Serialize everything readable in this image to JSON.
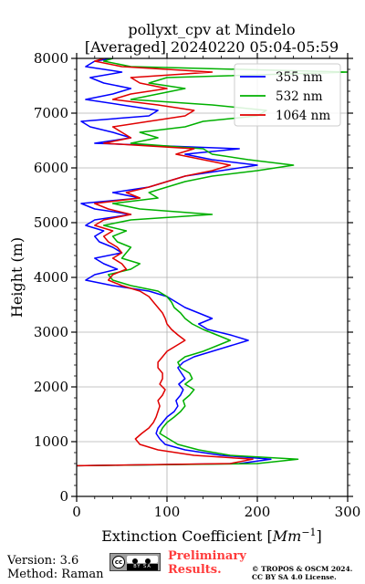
{
  "chart_data": {
    "type": "line",
    "title_line1": "pollyxt_cpv at Mindelo",
    "title_line2": "[Averaged] 20240220 05:04-05:59",
    "xlabel": "Extinction Coefficient [$Mm^{-1}$]",
    "xlabel_main": "Extinction Coefficient [",
    "xlabel_unit": "Mm",
    "xlabel_exp": "−1",
    "xlabel_close": "]",
    "ylabel": "Height (m)",
    "xlim": [
      0,
      300
    ],
    "ylim": [
      0,
      8000
    ],
    "xticks": [
      0,
      100,
      200,
      300
    ],
    "yticks": [
      0,
      1000,
      2000,
      3000,
      4000,
      5000,
      6000,
      7000,
      8000
    ],
    "grid": true,
    "legend_position": "top-right",
    "series": [
      {
        "name": "355 nm",
        "color": "#0000ff",
        "y": [
          560,
          600,
          680,
          750,
          850,
          950,
          1050,
          1150,
          1250,
          1350,
          1450,
          1550,
          1650,
          1750,
          1850,
          1950,
          2050,
          2150,
          2250,
          2350,
          2450,
          2550,
          2650,
          2750,
          2850,
          2950,
          3050,
          3150,
          3250,
          3350,
          3450,
          3550,
          3650,
          3750,
          3850,
          3950,
          4050,
          4150,
          4250,
          4350,
          4450,
          4550,
          4650,
          4750,
          4850,
          4950,
          5050,
          5150,
          5250,
          5350,
          5450,
          5550,
          5650,
          5750,
          5850,
          5950,
          6050,
          6150,
          6250,
          6350,
          6450,
          6550,
          6650,
          6750,
          6850,
          6950,
          7050,
          7150,
          7250,
          7350,
          7450,
          7550,
          7650,
          7750,
          7850,
          7950,
          8000
        ],
        "x": [
          0,
          180,
          215,
          160,
          120,
          98,
          92,
          88,
          90,
          95,
          100,
          108,
          112,
          110,
          115,
          118,
          113,
          120,
          116,
          112,
          118,
          130,
          150,
          170,
          190,
          170,
          145,
          135,
          150,
          135,
          120,
          110,
          100,
          80,
          40,
          10,
          20,
          45,
          30,
          20,
          50,
          40,
          25,
          20,
          30,
          10,
          20,
          60,
          20,
          5,
          70,
          40,
          80,
          100,
          120,
          160,
          200,
          150,
          120,
          180,
          20,
          60,
          40,
          15,
          5,
          80,
          90,
          50,
          10,
          40,
          60,
          30,
          15,
          50,
          10,
          20,
          40
        ]
      },
      {
        "name": "532 nm",
        "color": "#00b000",
        "y": [
          560,
          600,
          680,
          750,
          850,
          950,
          1050,
          1150,
          1250,
          1350,
          1450,
          1550,
          1650,
          1750,
          1850,
          1950,
          2050,
          2150,
          2250,
          2350,
          2450,
          2550,
          2650,
          2750,
          2850,
          2950,
          3050,
          3150,
          3250,
          3350,
          3450,
          3550,
          3650,
          3750,
          3850,
          3950,
          4050,
          4150,
          4250,
          4350,
          4450,
          4550,
          4650,
          4750,
          4850,
          4950,
          5050,
          5150,
          5250,
          5350,
          5450,
          5550,
          5650,
          5750,
          5850,
          5950,
          6050,
          6150,
          6250,
          6350,
          6450,
          6550,
          6650,
          6750,
          6850,
          6950,
          7050,
          7150,
          7250,
          7350,
          7450,
          7550,
          7650,
          7750,
          7850,
          7950,
          8000
        ],
        "x": [
          0,
          200,
          245,
          170,
          135,
          112,
          102,
          92,
          95,
          100,
          108,
          115,
          120,
          118,
          125,
          130,
          120,
          128,
          125,
          115,
          112,
          120,
          140,
          155,
          170,
          155,
          140,
          128,
          120,
          115,
          108,
          105,
          100,
          90,
          60,
          40,
          35,
          60,
          70,
          50,
          55,
          60,
          45,
          40,
          55,
          30,
          60,
          150,
          70,
          40,
          90,
          80,
          100,
          120,
          150,
          200,
          240,
          190,
          150,
          140,
          60,
          90,
          70,
          120,
          140,
          200,
          210,
          150,
          60,
          90,
          120,
          80,
          100,
          300,
          60,
          30,
          40
        ]
      },
      {
        "name": "1064 nm",
        "color": "#e00000",
        "y": [
          560,
          600,
          680,
          750,
          850,
          950,
          1050,
          1150,
          1250,
          1350,
          1450,
          1550,
          1650,
          1750,
          1850,
          1950,
          2050,
          2150,
          2250,
          2350,
          2450,
          2550,
          2650,
          2750,
          2850,
          2950,
          3050,
          3150,
          3250,
          3350,
          3450,
          3550,
          3650,
          3750,
          3850,
          3950,
          4050,
          4150,
          4250,
          4350,
          4450,
          4550,
          4650,
          4750,
          4850,
          4950,
          5050,
          5150,
          5250,
          5350,
          5450,
          5550,
          5650,
          5750,
          5850,
          5950,
          6050,
          6150,
          6250,
          6350,
          6450,
          6550,
          6650,
          6750,
          6850,
          6950,
          7050,
          7150,
          7250,
          7350,
          7450,
          7550,
          7650,
          7750,
          7850,
          7950,
          8000
        ],
        "x": [
          0,
          170,
          195,
          130,
          90,
          70,
          65,
          72,
          80,
          85,
          88,
          90,
          92,
          90,
          95,
          98,
          92,
          95,
          95,
          90,
          90,
          95,
          100,
          110,
          120,
          112,
          105,
          100,
          98,
          95,
          90,
          85,
          80,
          70,
          50,
          35,
          40,
          55,
          50,
          40,
          50,
          45,
          35,
          30,
          40,
          20,
          30,
          60,
          35,
          20,
          70,
          55,
          80,
          100,
          120,
          150,
          170,
          140,
          110,
          130,
          30,
          60,
          50,
          40,
          80,
          120,
          130,
          90,
          40,
          60,
          100,
          70,
          60,
          150,
          50,
          20,
          30
        ]
      }
    ]
  },
  "footer": {
    "version": "Version: 3.6",
    "method": "Method: Raman",
    "cc_text": "cc",
    "cc_sub": "BY SA",
    "preliminary_line1": "Preliminary",
    "preliminary_line2": "Results.",
    "copyright_line1": "© TROPOS & OSCM 2024.",
    "copyright_line2": "CC BY SA 4.0 License."
  }
}
